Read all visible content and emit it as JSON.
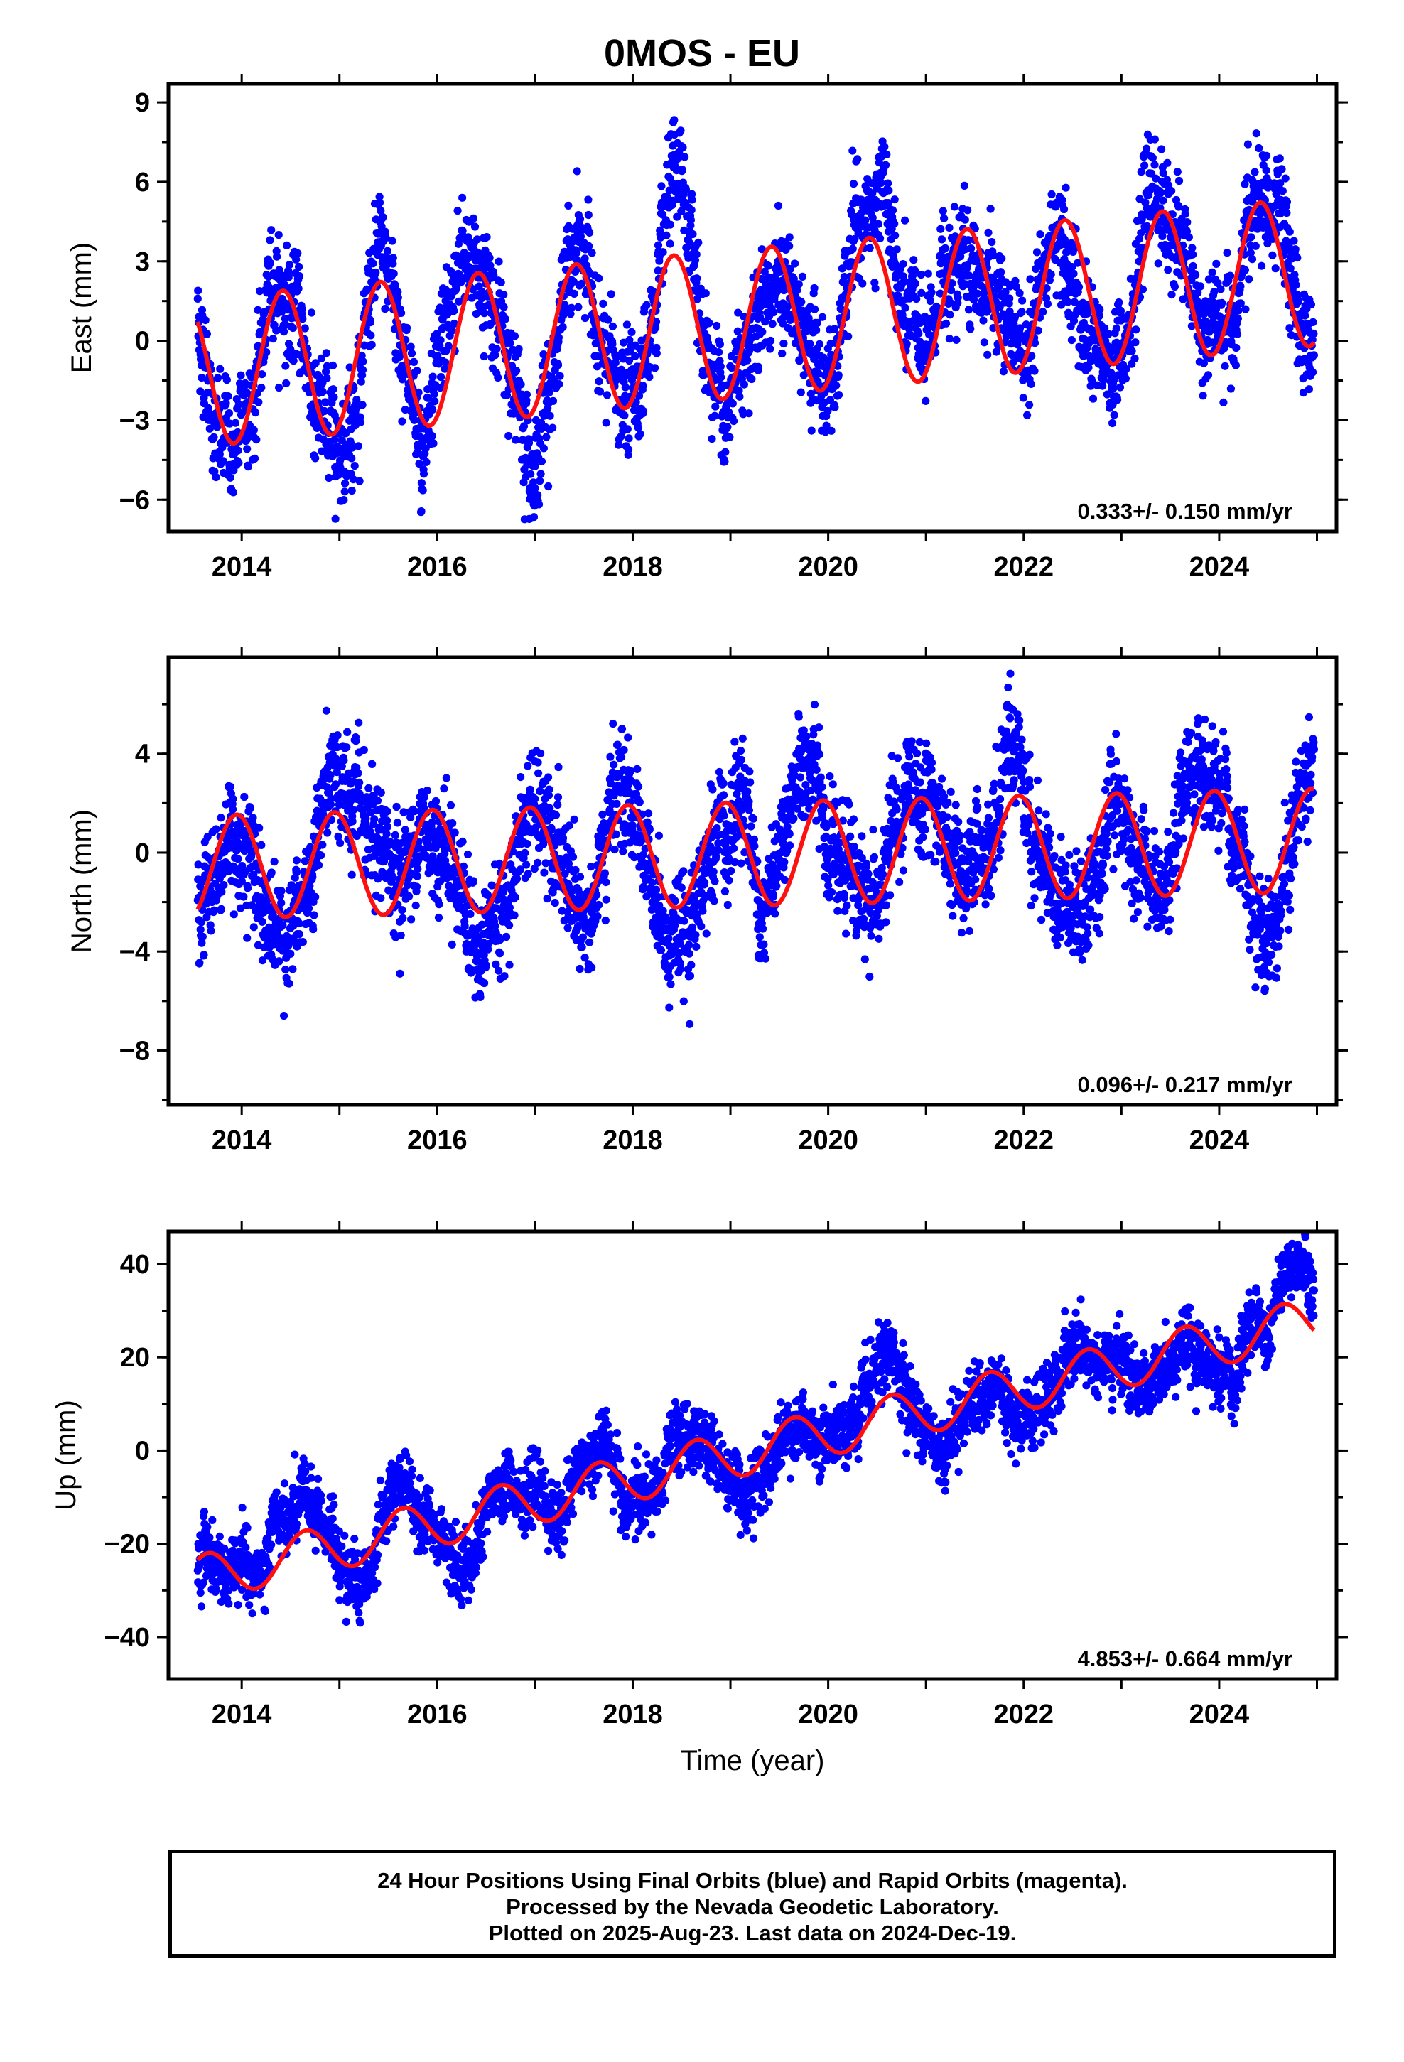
{
  "title": "0MOS - EU",
  "colors": {
    "points": "#0000ff",
    "model": "#ff1010",
    "frame": "#000000"
  },
  "chart_data": [
    {
      "type": "scatter",
      "name": "east",
      "ylabel": "East (mm)",
      "xlabel": "",
      "xlim": [
        2013.25,
        2025.2
      ],
      "ylim": [
        -7.2,
        9.7
      ],
      "xticks": [
        2014,
        2016,
        2018,
        2020,
        2022,
        2024
      ],
      "xtick_labels": [
        "2014",
        "2016",
        "2018",
        "2020",
        "2022",
        "2024"
      ],
      "yticks": [
        -6,
        -3,
        0,
        3,
        6,
        9
      ],
      "ytick_labels": [
        "−6",
        "−3",
        "0",
        "3",
        "6",
        "9"
      ],
      "rate_label": "0.333+/- 0.150 mm/yr",
      "model": {
        "t0": 2013.55,
        "t1": 2024.97,
        "offset": -1.2,
        "trend": 0.333,
        "amp": 2.8,
        "phase": 2024.42,
        "scatter": 1.3
      }
    },
    {
      "type": "scatter",
      "name": "north",
      "ylabel": "North (mm)",
      "xlabel": "",
      "xlim": [
        2013.25,
        2025.2
      ],
      "ylim": [
        -10.2,
        7.9
      ],
      "xticks": [
        2014,
        2016,
        2018,
        2020,
        2022,
        2024
      ],
      "xtick_labels": [
        "2014",
        "2016",
        "2018",
        "2020",
        "2022",
        "2024"
      ],
      "yticks": [
        -8,
        -4,
        0,
        4
      ],
      "ytick_labels": [
        "−8",
        "−4",
        "0",
        "4"
      ],
      "rate_label": "0.096+/- 0.217 mm/yr",
      "model": {
        "t0": 2013.55,
        "t1": 2024.97,
        "offset": -0.6,
        "trend": 0.096,
        "amp": 2.1,
        "phase": 2023.95,
        "scatter": 1.4
      }
    },
    {
      "type": "scatter",
      "name": "up",
      "ylabel": "Up (mm)",
      "xlabel": "Time (year)",
      "xlim": [
        2013.25,
        2025.2
      ],
      "ylim": [
        -49,
        47
      ],
      "xticks": [
        2014,
        2016,
        2018,
        2020,
        2022,
        2024
      ],
      "xtick_labels": [
        "2014",
        "2016",
        "2018",
        "2020",
        "2022",
        "2024"
      ],
      "yticks": [
        -40,
        -20,
        0,
        20,
        40
      ],
      "ytick_labels": [
        "−40",
        "−20",
        "0",
        "20",
        "40"
      ],
      "rate_label": "4.853+/- 0.664 mm/yr",
      "model": {
        "t0": 2013.55,
        "t1": 2024.97,
        "offset": -27.5,
        "trend": 4.853,
        "amp": 5.0,
        "phase": 2024.65,
        "scatter": 4.5
      }
    }
  ],
  "footer": {
    "line1": "24 Hour Positions Using Final Orbits (blue) and Rapid Orbits (magenta).",
    "line2": "Processed by the Nevada Geodetic Laboratory.",
    "line3": "Plotted on 2025-Aug-23. Last data on 2024-Dec-19."
  }
}
